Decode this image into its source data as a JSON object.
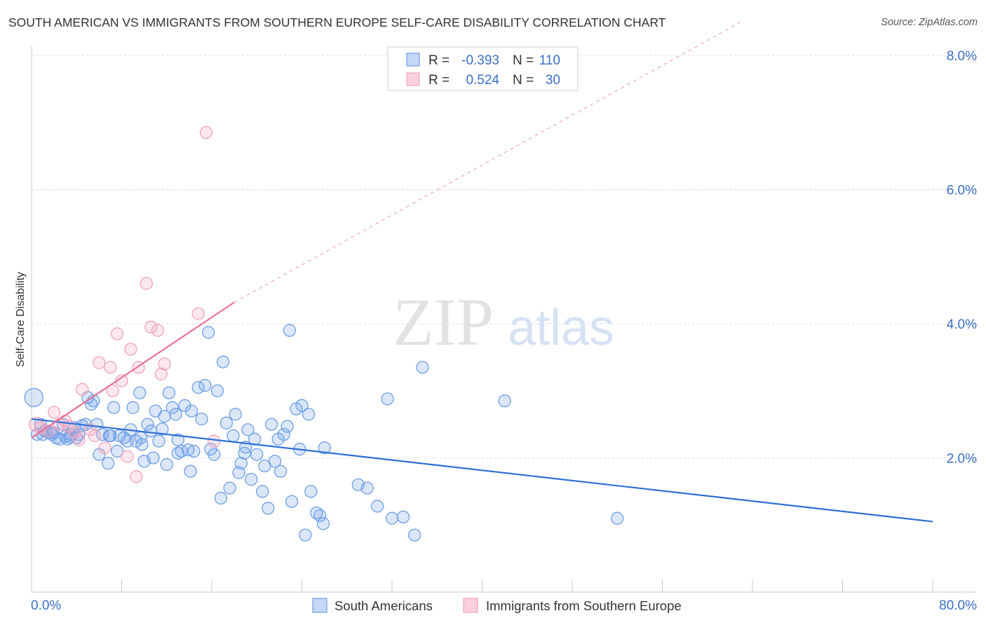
{
  "title": "SOUTH AMERICAN VS IMMIGRANTS FROM SOUTHERN EUROPE SELF-CARE DISABILITY CORRELATION CHART",
  "source": "Source: ZipAtlas.com",
  "watermark": {
    "zip": "ZIP",
    "atlas": "atlas"
  },
  "colors": {
    "blue": "#6e9fe6",
    "blue_line": "#2e6fd6",
    "pink": "#f2a3bb",
    "pink_line": "#e8709a",
    "tick_text": "#3a6fc6",
    "grid": "#dddddd",
    "axis_label": "#333333"
  },
  "stats": {
    "r_label": "R =",
    "n_label": "N =",
    "blue": {
      "r": "-0.393",
      "n": "110"
    },
    "pink": {
      "r": "0.524",
      "n": "30"
    }
  },
  "chart_data": {
    "type": "scatter",
    "title": "SOUTH AMERICAN VS IMMIGRANTS FROM SOUTHERN EUROPE SELF-CARE DISABILITY CORRELATION CHART",
    "xlabel": "",
    "ylabel": "Self-Care Disability",
    "xlim": [
      0,
      80
    ],
    "ylim": [
      0,
      8
    ],
    "x_tick_labels": [
      "0.0%",
      "80.0%"
    ],
    "y_ticks": [
      2,
      4,
      6,
      8
    ],
    "y_tick_labels": [
      "2.0%",
      "4.0%",
      "6.0%",
      "8.0%"
    ],
    "grid": true,
    "legend_position": "bottom",
    "series": [
      {
        "name": "South Americans",
        "color": "#6e9fe6",
        "r": -0.393,
        "n": 110,
        "trend": {
          "x0": 0,
          "y0": 2.58,
          "x1": 80,
          "y1": 1.05
        },
        "points": [
          [
            0.2,
            2.9
          ],
          [
            0.5,
            2.35
          ],
          [
            0.8,
            2.5
          ],
          [
            1.0,
            2.35
          ],
          [
            1.2,
            2.4
          ],
          [
            1.5,
            2.38
          ],
          [
            1.8,
            2.35
          ],
          [
            2.2,
            2.3
          ],
          [
            2.5,
            2.28
          ],
          [
            2.8,
            2.5
          ],
          [
            3.0,
            2.32
          ],
          [
            3.2,
            2.28
          ],
          [
            3.5,
            2.35
          ],
          [
            3.8,
            2.45
          ],
          [
            4.0,
            2.3
          ],
          [
            4.2,
            2.35
          ],
          [
            4.5,
            2.48
          ],
          [
            4.8,
            2.5
          ],
          [
            5.0,
            2.9
          ],
          [
            5.3,
            2.8
          ],
          [
            5.5,
            2.85
          ],
          [
            6.0,
            2.05
          ],
          [
            6.3,
            2.35
          ],
          [
            6.8,
            1.92
          ],
          [
            7.0,
            2.33
          ],
          [
            7.3,
            2.75
          ],
          [
            7.6,
            2.1
          ],
          [
            7.8,
            2.33
          ],
          [
            8.2,
            2.3
          ],
          [
            8.5,
            2.25
          ],
          [
            8.8,
            2.42
          ],
          [
            9.0,
            2.75
          ],
          [
            9.3,
            2.25
          ],
          [
            9.6,
            2.97
          ],
          [
            9.8,
            2.2
          ],
          [
            10.0,
            1.95
          ],
          [
            10.3,
            2.5
          ],
          [
            10.6,
            2.4
          ],
          [
            10.8,
            2.0
          ],
          [
            11.0,
            2.7
          ],
          [
            11.3,
            2.25
          ],
          [
            11.6,
            2.43
          ],
          [
            11.8,
            2.62
          ],
          [
            12.0,
            1.9
          ],
          [
            12.2,
            2.97
          ],
          [
            12.5,
            2.75
          ],
          [
            12.8,
            2.65
          ],
          [
            13.0,
            2.07
          ],
          [
            13.3,
            2.1
          ],
          [
            13.6,
            2.78
          ],
          [
            13.9,
            2.12
          ],
          [
            14.1,
            1.8
          ],
          [
            14.4,
            2.1
          ],
          [
            14.8,
            3.05
          ],
          [
            15.1,
            2.58
          ],
          [
            15.4,
            3.08
          ],
          [
            15.7,
            3.87
          ],
          [
            15.9,
            2.13
          ],
          [
            16.2,
            2.05
          ],
          [
            16.5,
            3.0
          ],
          [
            16.8,
            1.4
          ],
          [
            17.0,
            3.43
          ],
          [
            17.3,
            2.52
          ],
          [
            17.6,
            1.55
          ],
          [
            17.9,
            2.33
          ],
          [
            18.1,
            2.65
          ],
          [
            18.4,
            1.78
          ],
          [
            18.6,
            1.92
          ],
          [
            18.9,
            2.07
          ],
          [
            19.2,
            2.42
          ],
          [
            19.5,
            1.68
          ],
          [
            19.8,
            2.28
          ],
          [
            20.0,
            2.05
          ],
          [
            20.5,
            1.5
          ],
          [
            21.0,
            1.25
          ],
          [
            21.3,
            2.5
          ],
          [
            21.6,
            1.95
          ],
          [
            21.9,
            2.28
          ],
          [
            22.1,
            1.8
          ],
          [
            22.4,
            2.35
          ],
          [
            22.7,
            2.47
          ],
          [
            22.9,
            3.9
          ],
          [
            23.1,
            1.35
          ],
          [
            23.5,
            2.73
          ],
          [
            23.8,
            2.13
          ],
          [
            24.0,
            2.78
          ],
          [
            24.3,
            0.85
          ],
          [
            24.6,
            2.65
          ],
          [
            24.8,
            1.5
          ],
          [
            25.3,
            1.18
          ],
          [
            25.9,
            1.02
          ],
          [
            26.0,
            2.15
          ],
          [
            29.0,
            1.6
          ],
          [
            29.8,
            1.55
          ],
          [
            30.7,
            1.28
          ],
          [
            31.6,
            2.88
          ],
          [
            32.0,
            1.1
          ],
          [
            33.0,
            1.12
          ],
          [
            34.0,
            0.85
          ],
          [
            34.7,
            3.35
          ],
          [
            42.0,
            2.85
          ],
          [
            52.0,
            1.1
          ],
          [
            13.0,
            2.27
          ],
          [
            9.7,
            2.3
          ],
          [
            6.9,
            2.33
          ],
          [
            5.8,
            2.5
          ],
          [
            14.2,
            2.7
          ],
          [
            19.0,
            2.16
          ],
          [
            3.4,
            2.31
          ],
          [
            1.9,
            2.38
          ],
          [
            25.6,
            1.14
          ],
          [
            20.7,
            1.88
          ]
        ]
      },
      {
        "name": "Immigrants from Southern Europe",
        "color": "#f2a3bb",
        "r": 0.524,
        "n": 30,
        "trend": {
          "x0": 0,
          "y0": 2.3,
          "x1": 18.0,
          "y1": 4.32,
          "dash_x1": 63.0,
          "dash_y1": 8.5
        },
        "points": [
          [
            0.4,
            2.5
          ],
          [
            0.8,
            2.45
          ],
          [
            1.5,
            2.4
          ],
          [
            2.0,
            2.68
          ],
          [
            2.5,
            2.5
          ],
          [
            3.0,
            2.55
          ],
          [
            3.3,
            2.47
          ],
          [
            3.8,
            2.38
          ],
          [
            4.2,
            2.27
          ],
          [
            4.5,
            3.02
          ],
          [
            5.2,
            2.42
          ],
          [
            5.6,
            2.33
          ],
          [
            6.0,
            3.42
          ],
          [
            6.5,
            2.15
          ],
          [
            7.0,
            3.35
          ],
          [
            7.2,
            3.0
          ],
          [
            7.6,
            3.85
          ],
          [
            8.0,
            3.15
          ],
          [
            8.5,
            2.02
          ],
          [
            8.8,
            3.62
          ],
          [
            9.3,
            1.72
          ],
          [
            9.5,
            3.35
          ],
          [
            10.2,
            4.6
          ],
          [
            10.6,
            3.95
          ],
          [
            11.2,
            3.9
          ],
          [
            11.5,
            3.25
          ],
          [
            11.8,
            3.4
          ],
          [
            14.8,
            4.15
          ],
          [
            16.2,
            2.25
          ],
          [
            15.5,
            6.85
          ]
        ]
      }
    ]
  },
  "legend": {
    "blue_label": "South Americans",
    "pink_label": "Immigrants from Southern Europe"
  }
}
